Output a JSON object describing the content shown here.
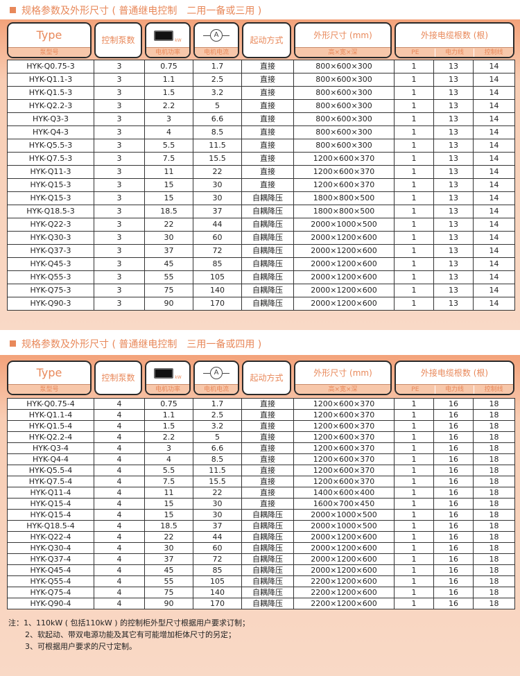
{
  "colors": {
    "accent": "#e8885a",
    "panel": "#f9d9c6"
  },
  "header": {
    "type": "Type",
    "type_sub": "泵型号",
    "pumps": "控制泵数",
    "power_unit": "kW",
    "power_sub": "电机功率",
    "current_symbol": "A",
    "current_sub": "电机电流",
    "start": "起动方式",
    "dims": "外形尺寸 (mm)",
    "dims_sub": "高×宽×深",
    "cables": "外接电缆根数 (根)",
    "pe": "PE",
    "power_line": "电力线",
    "control_line": "控制线"
  },
  "table1": {
    "title": "规格参数及外形尺寸 ( 普通继电控制　二用一备或三用 )",
    "rows": [
      [
        "HYK-Q0.75-3",
        "3",
        "0.75",
        "1.7",
        "直接",
        "800×600×300",
        "1",
        "13",
        "14"
      ],
      [
        "HYK-Q1.1-3",
        "3",
        "1.1",
        "2.5",
        "直接",
        "800×600×300",
        "1",
        "13",
        "14"
      ],
      [
        "HYK-Q1.5-3",
        "3",
        "1.5",
        "3.2",
        "直接",
        "800×600×300",
        "1",
        "13",
        "14"
      ],
      [
        "HYK-Q2.2-3",
        "3",
        "2.2",
        "5",
        "直接",
        "800×600×300",
        "1",
        "13",
        "14"
      ],
      [
        "HYK-Q3-3",
        "3",
        "3",
        "6.6",
        "直接",
        "800×600×300",
        "1",
        "13",
        "14"
      ],
      [
        "HYK-Q4-3",
        "3",
        "4",
        "8.5",
        "直接",
        "800×600×300",
        "1",
        "13",
        "14"
      ],
      [
        "HYK-Q5.5-3",
        "3",
        "5.5",
        "11.5",
        "直接",
        "800×600×300",
        "1",
        "13",
        "14"
      ],
      [
        "HYK-Q7.5-3",
        "3",
        "7.5",
        "15.5",
        "直接",
        "1200×600×370",
        "1",
        "13",
        "14"
      ],
      [
        "HYK-Q11-3",
        "3",
        "11",
        "22",
        "直接",
        "1200×600×370",
        "1",
        "13",
        "14"
      ],
      [
        "HYK-Q15-3",
        "3",
        "15",
        "30",
        "直接",
        "1200×600×370",
        "1",
        "13",
        "14"
      ],
      [
        "HYK-Q15-3",
        "3",
        "15",
        "30",
        "自耦降压",
        "1800×800×500",
        "1",
        "13",
        "14"
      ],
      [
        "HYK-Q18.5-3",
        "3",
        "18.5",
        "37",
        "自耦降压",
        "1800×800×500",
        "1",
        "13",
        "14"
      ],
      [
        "HYK-Q22-3",
        "3",
        "22",
        "44",
        "自耦降压",
        "2000×1000×500",
        "1",
        "13",
        "14"
      ],
      [
        "HYK-Q30-3",
        "3",
        "30",
        "60",
        "自耦降压",
        "2000×1200×600",
        "1",
        "13",
        "14"
      ],
      [
        "HYK-Q37-3",
        "3",
        "37",
        "72",
        "自耦降压",
        "2000×1200×600",
        "1",
        "13",
        "14"
      ],
      [
        "HYK-Q45-3",
        "3",
        "45",
        "85",
        "自耦降压",
        "2000×1200×600",
        "1",
        "13",
        "14"
      ],
      [
        "HYK-Q55-3",
        "3",
        "55",
        "105",
        "自耦降压",
        "2000×1200×600",
        "1",
        "13",
        "14"
      ],
      [
        "HYK-Q75-3",
        "3",
        "75",
        "140",
        "自耦降压",
        "2000×1200×600",
        "1",
        "13",
        "14"
      ],
      [
        "HYK-Q90-3",
        "3",
        "90",
        "170",
        "自耦降压",
        "2000×1200×600",
        "1",
        "13",
        "14"
      ]
    ]
  },
  "table2": {
    "title": "规格参数及外形尺寸 ( 普通继电控制　三用一备或四用 )",
    "rows": [
      [
        "HYK-Q0.75-4",
        "4",
        "0.75",
        "1.7",
        "直接",
        "1200×600×370",
        "1",
        "16",
        "18"
      ],
      [
        "HYK-Q1.1-4",
        "4",
        "1.1",
        "2.5",
        "直接",
        "1200×600×370",
        "1",
        "16",
        "18"
      ],
      [
        "HYK-Q1.5-4",
        "4",
        "1.5",
        "3.2",
        "直接",
        "1200×600×370",
        "1",
        "16",
        "18"
      ],
      [
        "HYK-Q2.2-4",
        "4",
        "2.2",
        "5",
        "直接",
        "1200×600×370",
        "1",
        "16",
        "18"
      ],
      [
        "HYK-Q3-4",
        "4",
        "3",
        "6.6",
        "直接",
        "1200×600×370",
        "1",
        "16",
        "18"
      ],
      [
        "HYK-Q4-4",
        "4",
        "4",
        "8.5",
        "直接",
        "1200×600×370",
        "1",
        "16",
        "18"
      ],
      [
        "HYK-Q5.5-4",
        "4",
        "5.5",
        "11.5",
        "直接",
        "1200×600×370",
        "1",
        "16",
        "18"
      ],
      [
        "HYK-Q7.5-4",
        "4",
        "7.5",
        "15.5",
        "直接",
        "1200×600×370",
        "1",
        "16",
        "18"
      ],
      [
        "HYK-Q11-4",
        "4",
        "11",
        "22",
        "直接",
        "1400×600×400",
        "1",
        "16",
        "18"
      ],
      [
        "HYK-Q15-4",
        "4",
        "15",
        "30",
        "直接",
        "1600×700×450",
        "1",
        "16",
        "18"
      ],
      [
        "HYK-Q15-4",
        "4",
        "15",
        "30",
        "自耦降压",
        "2000×1000×500",
        "1",
        "16",
        "18"
      ],
      [
        "HYK-Q18.5-4",
        "4",
        "18.5",
        "37",
        "自耦降压",
        "2000×1000×500",
        "1",
        "16",
        "18"
      ],
      [
        "HYK-Q22-4",
        "4",
        "22",
        "44",
        "自耦降压",
        "2000×1200×600",
        "1",
        "16",
        "18"
      ],
      [
        "HYK-Q30-4",
        "4",
        "30",
        "60",
        "自耦降压",
        "2000×1200×600",
        "1",
        "16",
        "18"
      ],
      [
        "HYK-Q37-4",
        "4",
        "37",
        "72",
        "自耦降压",
        "2000×1200×600",
        "1",
        "16",
        "18"
      ],
      [
        "HYK-Q45-4",
        "4",
        "45",
        "85",
        "自耦降压",
        "2000×1200×600",
        "1",
        "16",
        "18"
      ],
      [
        "HYK-Q55-4",
        "4",
        "55",
        "105",
        "自耦降压",
        "2200×1200×600",
        "1",
        "16",
        "18"
      ],
      [
        "HYK-Q75-4",
        "4",
        "75",
        "140",
        "自耦降压",
        "2200×1200×600",
        "1",
        "16",
        "18"
      ],
      [
        "HYK-Q90-4",
        "4",
        "90",
        "170",
        "自耦降压",
        "2200×1200×600",
        "1",
        "16",
        "18"
      ]
    ]
  },
  "notes": [
    "注：1、110kW ( 包括110kW ) 的控制柜外型尺寸根据用户要求订制；",
    "2、软起动、带双电源功能及其它有可能增加柜体尺寸的另定；",
    "3、可根据用户要求的尺寸定制。"
  ]
}
